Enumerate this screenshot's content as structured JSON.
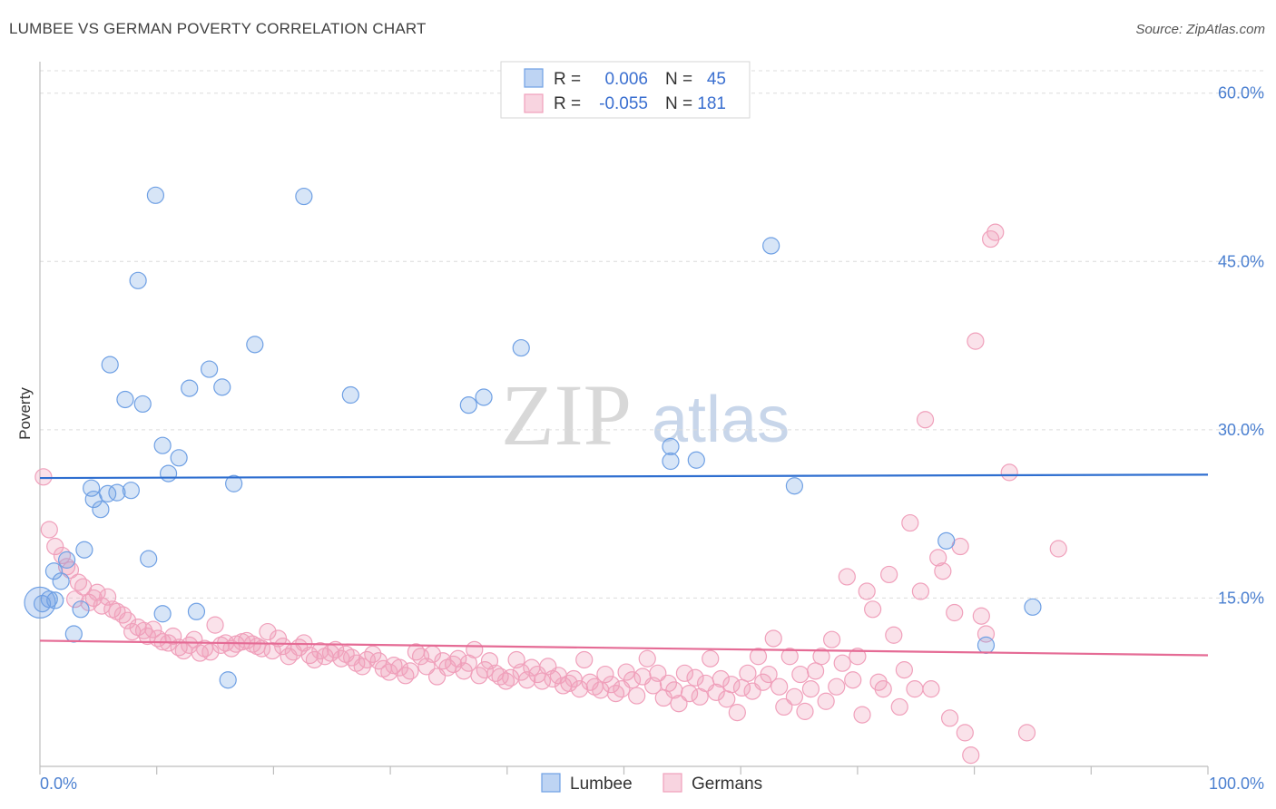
{
  "header": {
    "title": "LUMBEE VS GERMAN POVERTY CORRELATION CHART",
    "source": "Source: ZipAtlas.com"
  },
  "watermark": {
    "zip": "ZIP",
    "atlas": "atlas"
  },
  "legend": {
    "r_label": "R =",
    "n_label": "N =",
    "rows": [
      {
        "r": "0.006",
        "n": "45"
      },
      {
        "r": "-0.055",
        "n": "181"
      }
    ]
  },
  "bottom_legend": [
    "Lumbee",
    "Germans"
  ],
  "chart_data": {
    "type": "scatter",
    "title": "LUMBEE VS GERMAN POVERTY CORRELATION CHART",
    "xlabel": "",
    "ylabel": "Poverty",
    "xlim": [
      0,
      100
    ],
    "ylim": [
      0,
      62
    ],
    "x_tick_labels": [
      "0.0%",
      "100.0%"
    ],
    "y_ticks": [
      15,
      30,
      45,
      60
    ],
    "y_tick_labels": [
      "15.0%",
      "30.0%",
      "45.0%",
      "60.0%"
    ],
    "grid": true,
    "colors": {
      "Lumbee": "#6fa0e4",
      "Germans": "#f0a0bb",
      "Lumbee_line": "#2f6fd0",
      "Germans_line": "#e56b95"
    },
    "series": [
      {
        "name": "Lumbee",
        "R": 0.006,
        "N": 45,
        "trend": {
          "x": [
            0,
            100
          ],
          "y": [
            25.7,
            26.0
          ]
        },
        "points": [
          [
            0.2,
            14.5
          ],
          [
            0.8,
            14.9
          ],
          [
            1.2,
            17.4
          ],
          [
            1.8,
            16.5
          ],
          [
            2.3,
            18.4
          ],
          [
            2.9,
            11.8
          ],
          [
            3.5,
            14.0
          ],
          [
            3.8,
            19.3
          ],
          [
            4.4,
            24.8
          ],
          [
            4.6,
            23.8
          ],
          [
            5.2,
            22.9
          ],
          [
            5.8,
            24.3
          ],
          [
            6.0,
            35.8
          ],
          [
            6.6,
            24.4
          ],
          [
            7.3,
            32.7
          ],
          [
            7.8,
            24.6
          ],
          [
            8.4,
            43.3
          ],
          [
            8.8,
            32.3
          ],
          [
            9.3,
            18.5
          ],
          [
            9.9,
            50.9
          ],
          [
            10.5,
            28.6
          ],
          [
            10.5,
            13.6
          ],
          [
            11.0,
            26.1
          ],
          [
            11.9,
            27.5
          ],
          [
            12.8,
            33.7
          ],
          [
            13.4,
            13.8
          ],
          [
            14.5,
            35.4
          ],
          [
            15.6,
            33.8
          ],
          [
            16.1,
            7.7
          ],
          [
            16.6,
            25.2
          ],
          [
            18.4,
            37.6
          ],
          [
            22.6,
            50.8
          ],
          [
            26.6,
            33.1
          ],
          [
            36.7,
            32.2
          ],
          [
            38.0,
            32.9
          ],
          [
            41.2,
            37.3
          ],
          [
            54.0,
            28.5
          ],
          [
            54.0,
            27.2
          ],
          [
            56.2,
            27.3
          ],
          [
            62.6,
            46.4
          ],
          [
            64.6,
            25.0
          ],
          [
            77.6,
            20.1
          ],
          [
            81.0,
            10.8
          ],
          [
            85.0,
            14.2
          ],
          [
            1.3,
            14.8
          ]
        ]
      },
      {
        "name": "Germans",
        "R": -0.055,
        "N": 181,
        "trend": {
          "x": [
            0,
            100
          ],
          "y": [
            11.2,
            9.9
          ]
        },
        "points": [
          [
            0.3,
            25.8
          ],
          [
            0.8,
            21.1
          ],
          [
            1.3,
            19.6
          ],
          [
            1.9,
            18.8
          ],
          [
            2.3,
            17.8
          ],
          [
            2.6,
            17.5
          ],
          [
            3.0,
            14.9
          ],
          [
            3.3,
            16.4
          ],
          [
            3.7,
            16.0
          ],
          [
            4.2,
            14.6
          ],
          [
            4.6,
            15.0
          ],
          [
            4.9,
            15.5
          ],
          [
            5.3,
            14.3
          ],
          [
            5.8,
            15.1
          ],
          [
            6.2,
            14.0
          ],
          [
            6.6,
            13.8
          ],
          [
            7.1,
            13.5
          ],
          [
            7.5,
            13.0
          ],
          [
            7.9,
            12.0
          ],
          [
            8.4,
            12.4
          ],
          [
            8.9,
            12.1
          ],
          [
            9.2,
            11.6
          ],
          [
            9.7,
            12.2
          ],
          [
            10.1,
            11.4
          ],
          [
            10.5,
            11.1
          ],
          [
            11.0,
            11.0
          ],
          [
            11.4,
            11.6
          ],
          [
            11.9,
            10.6
          ],
          [
            12.3,
            10.3
          ],
          [
            12.8,
            10.8
          ],
          [
            13.2,
            11.3
          ],
          [
            13.7,
            10.1
          ],
          [
            14.1,
            10.5
          ],
          [
            14.6,
            10.2
          ],
          [
            15.0,
            12.6
          ],
          [
            15.5,
            10.8
          ],
          [
            15.9,
            11.0
          ],
          [
            16.4,
            10.5
          ],
          [
            16.8,
            10.9
          ],
          [
            17.3,
            11.1
          ],
          [
            17.7,
            11.2
          ],
          [
            18.2,
            10.9
          ],
          [
            18.6,
            10.7
          ],
          [
            19.0,
            10.5
          ],
          [
            19.5,
            12.0
          ],
          [
            19.9,
            10.3
          ],
          [
            20.4,
            11.4
          ],
          [
            20.8,
            10.7
          ],
          [
            21.3,
            9.8
          ],
          [
            21.7,
            10.2
          ],
          [
            22.2,
            10.6
          ],
          [
            22.6,
            11.0
          ],
          [
            23.1,
            9.9
          ],
          [
            23.5,
            9.5
          ],
          [
            24.0,
            10.3
          ],
          [
            24.4,
            9.8
          ],
          [
            24.9,
            10.1
          ],
          [
            25.3,
            10.4
          ],
          [
            25.8,
            9.6
          ],
          [
            26.2,
            10.0
          ],
          [
            26.7,
            9.7
          ],
          [
            27.1,
            9.2
          ],
          [
            27.6,
            8.9
          ],
          [
            28.0,
            9.5
          ],
          [
            28.5,
            10.0
          ],
          [
            29.0,
            9.4
          ],
          [
            29.4,
            8.7
          ],
          [
            29.9,
            8.4
          ],
          [
            30.3,
            9.0
          ],
          [
            30.8,
            8.8
          ],
          [
            31.3,
            8.1
          ],
          [
            31.7,
            8.5
          ],
          [
            32.2,
            10.2
          ],
          [
            32.6,
            9.8
          ],
          [
            33.1,
            8.9
          ],
          [
            33.6,
            10.0
          ],
          [
            34.0,
            8.0
          ],
          [
            34.5,
            9.4
          ],
          [
            34.9,
            8.8
          ],
          [
            35.4,
            9.1
          ],
          [
            35.8,
            9.6
          ],
          [
            36.3,
            8.5
          ],
          [
            36.7,
            9.2
          ],
          [
            37.2,
            10.4
          ],
          [
            37.6,
            8.1
          ],
          [
            38.1,
            8.6
          ],
          [
            38.5,
            9.4
          ],
          [
            39.0,
            8.3
          ],
          [
            39.4,
            8.0
          ],
          [
            39.9,
            7.6
          ],
          [
            40.3,
            7.9
          ],
          [
            40.8,
            9.5
          ],
          [
            41.2,
            8.4
          ],
          [
            41.7,
            7.7
          ],
          [
            42.1,
            8.8
          ],
          [
            42.6,
            8.2
          ],
          [
            43.0,
            7.6
          ],
          [
            43.5,
            8.9
          ],
          [
            43.9,
            7.8
          ],
          [
            44.4,
            8.1
          ],
          [
            44.8,
            7.2
          ],
          [
            45.3,
            7.4
          ],
          [
            45.7,
            7.8
          ],
          [
            46.2,
            6.9
          ],
          [
            46.6,
            9.5
          ],
          [
            47.1,
            7.5
          ],
          [
            47.5,
            7.1
          ],
          [
            48.0,
            6.8
          ],
          [
            48.4,
            8.2
          ],
          [
            48.9,
            7.3
          ],
          [
            49.3,
            6.5
          ],
          [
            49.8,
            6.9
          ],
          [
            50.2,
            8.4
          ],
          [
            50.7,
            7.7
          ],
          [
            51.1,
            6.3
          ],
          [
            51.6,
            8.0
          ],
          [
            52.0,
            9.6
          ],
          [
            52.5,
            7.2
          ],
          [
            52.9,
            8.3
          ],
          [
            53.4,
            6.1
          ],
          [
            53.8,
            7.4
          ],
          [
            54.3,
            6.8
          ],
          [
            54.7,
            5.6
          ],
          [
            55.2,
            8.3
          ],
          [
            55.6,
            6.5
          ],
          [
            56.1,
            7.9
          ],
          [
            56.5,
            6.2
          ],
          [
            57.0,
            7.4
          ],
          [
            57.4,
            9.6
          ],
          [
            57.9,
            6.6
          ],
          [
            58.3,
            7.8
          ],
          [
            58.8,
            6.0
          ],
          [
            59.2,
            7.3
          ],
          [
            59.7,
            4.8
          ],
          [
            60.1,
            7.0
          ],
          [
            60.6,
            8.3
          ],
          [
            61.0,
            6.7
          ],
          [
            61.5,
            9.8
          ],
          [
            61.9,
            7.5
          ],
          [
            62.4,
            8.2
          ],
          [
            62.8,
            11.4
          ],
          [
            63.3,
            7.1
          ],
          [
            63.7,
            5.3
          ],
          [
            64.2,
            9.8
          ],
          [
            64.6,
            6.2
          ],
          [
            65.1,
            8.2
          ],
          [
            65.5,
            4.9
          ],
          [
            66.0,
            6.9
          ],
          [
            66.4,
            8.5
          ],
          [
            66.9,
            9.8
          ],
          [
            67.3,
            5.8
          ],
          [
            67.8,
            11.3
          ],
          [
            68.2,
            7.1
          ],
          [
            68.7,
            9.2
          ],
          [
            69.1,
            16.9
          ],
          [
            69.6,
            7.7
          ],
          [
            70.0,
            9.8
          ],
          [
            70.4,
            4.6
          ],
          [
            70.8,
            15.6
          ],
          [
            71.3,
            14.0
          ],
          [
            71.8,
            7.5
          ],
          [
            72.2,
            6.9
          ],
          [
            72.7,
            17.1
          ],
          [
            73.1,
            11.7
          ],
          [
            73.6,
            5.3
          ],
          [
            74.0,
            8.6
          ],
          [
            74.5,
            21.7
          ],
          [
            74.9,
            6.9
          ],
          [
            75.4,
            15.6
          ],
          [
            75.8,
            30.9
          ],
          [
            76.3,
            6.9
          ],
          [
            76.9,
            18.6
          ],
          [
            77.3,
            17.4
          ],
          [
            77.9,
            4.3
          ],
          [
            78.3,
            13.7
          ],
          [
            78.8,
            19.6
          ],
          [
            79.2,
            3.0
          ],
          [
            79.7,
            1.0
          ],
          [
            80.1,
            37.9
          ],
          [
            80.6,
            13.4
          ],
          [
            81.0,
            11.8
          ],
          [
            81.4,
            47.0
          ],
          [
            81.8,
            47.6
          ],
          [
            83.0,
            26.2
          ],
          [
            84.5,
            3.0
          ],
          [
            87.2,
            19.4
          ]
        ]
      }
    ]
  }
}
